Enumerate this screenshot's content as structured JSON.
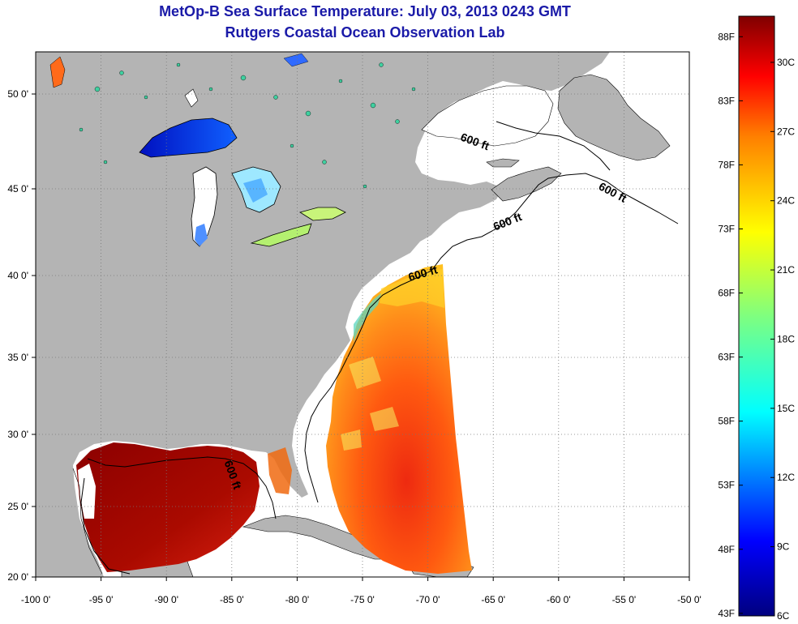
{
  "header": {
    "title": "MetOp-B Sea Surface Temperature:  July 03, 2013 0243 GMT",
    "subtitle": "Rutgers Coastal Ocean Observation Lab"
  },
  "map": {
    "region": "Western North Atlantic and Gulf of Mexico",
    "lon_range": [
      -100,
      -50
    ],
    "lat_range": [
      20,
      52
    ],
    "lon_ticks": [
      {
        "value": -100,
        "label": "-100 0'"
      },
      {
        "value": -95,
        "label": "-95 0'"
      },
      {
        "value": -90,
        "label": "-90 0'"
      },
      {
        "value": -85,
        "label": "-85 0'"
      },
      {
        "value": -80,
        "label": "-80 0'"
      },
      {
        "value": -75,
        "label": "-75 0'"
      },
      {
        "value": -70,
        "label": "-70 0'"
      },
      {
        "value": -65,
        "label": "-65 0'"
      },
      {
        "value": -60,
        "label": "-60 0'"
      },
      {
        "value": -55,
        "label": "-55 0'"
      },
      {
        "value": -50,
        "label": "-50 0'"
      }
    ],
    "lat_ticks": [
      {
        "value": 20,
        "label": "20 0'"
      },
      {
        "value": 25,
        "label": "25 0'"
      },
      {
        "value": 30,
        "label": "30 0'"
      },
      {
        "value": 35,
        "label": "35 0'"
      },
      {
        "value": 40,
        "label": "40 0'"
      },
      {
        "value": 45,
        "label": "45 0'"
      },
      {
        "value": 50,
        "label": "50 0'"
      }
    ],
    "grid": "dotted",
    "contour_labels": [
      {
        "text": "600 ft",
        "lon": -66.5,
        "lat": 47.3
      },
      {
        "text": "600 ft",
        "lon": -56,
        "lat": 44.6
      },
      {
        "text": "600 ft",
        "lon": -63.8,
        "lat": 42.9
      },
      {
        "text": "600 ft",
        "lon": -70.3,
        "lat": 39.9
      },
      {
        "text": "600 ft",
        "lon": -85.2,
        "lat": 27.1
      }
    ],
    "colors": {
      "land": "#b4b4b4",
      "ocean_no_data": "#ffffff",
      "contour": "#000000"
    }
  },
  "colorbar": {
    "min_c": 6,
    "max_c": 32,
    "fahrenheit_labels": [
      "88F",
      "83F",
      "78F",
      "73F",
      "68F",
      "63F",
      "58F",
      "53F",
      "48F",
      "43F"
    ],
    "fahrenheit_values": [
      88,
      83,
      78,
      73,
      68,
      63,
      58,
      53,
      48,
      43
    ],
    "celsius_labels": [
      "30C",
      "27C",
      "24C",
      "21C",
      "18C",
      "15C",
      "12C",
      "9C",
      "6C"
    ],
    "celsius_values": [
      30,
      27,
      24,
      21,
      18,
      15,
      12,
      9,
      6
    ],
    "colors": [
      "#00007f",
      "#0000ff",
      "#007fff",
      "#00ffff",
      "#7fff7f",
      "#ffff00",
      "#ff7f00",
      "#ff0000",
      "#7f0000"
    ]
  }
}
